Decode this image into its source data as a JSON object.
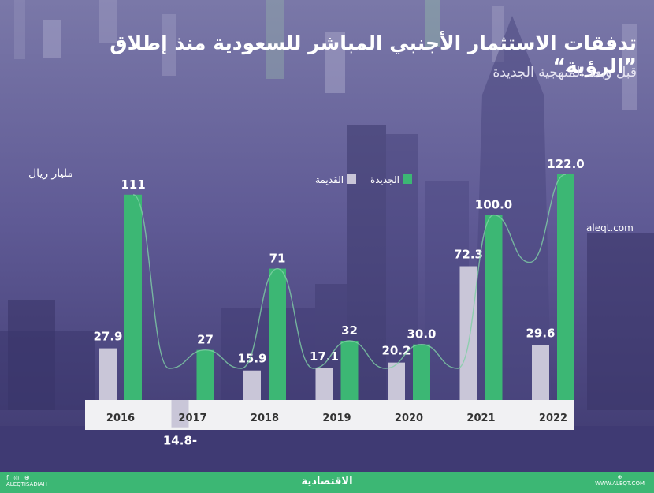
{
  "header": {
    "title": "تدفقات الاستثمار الأجنبي المباشر للسعودية منذ إطلاق ”الرؤية“",
    "subtitle": "قبل وبعد المنهجية الجديدة"
  },
  "unit_label": "مليار ريال",
  "source_label": "aleqt.com",
  "legend": {
    "new_label": "الجديدة",
    "old_label": "القديمة"
  },
  "colors": {
    "new": "#3cb774",
    "old": "#c9c6d8",
    "axis_bar": "#f1f1f3",
    "footer": "#3cb774"
  },
  "footer": {
    "logo": "الاقتصادية",
    "left_handle": "ALEQTISADIAH",
    "right_handle": "WWW.ALEQT.COM",
    "left_icons": "f ◎ ⊕",
    "right_icon": "⊕"
  },
  "chart_data": {
    "type": "bar",
    "title": "تدفقات الاستثمار الأجنبي المباشر للسعودية منذ إطلاق ”الرؤية“",
    "subtitle": "قبل وبعد المنهجية الجديدة",
    "ylabel": "مليار ريال",
    "categories": [
      "2016",
      "2017",
      "2018",
      "2019",
      "2020",
      "2021",
      "2022"
    ],
    "series": [
      {
        "name": "القديمة",
        "values": [
          27.9,
          -14.8,
          15.9,
          17.1,
          20.2,
          72.3,
          29.6
        ],
        "labels": [
          "27.9",
          "14.8-",
          "15.9",
          "17.1",
          "20.2",
          "72.3",
          "29.6"
        ]
      },
      {
        "name": "الجديدة",
        "values": [
          111,
          27,
          71,
          32,
          30.0,
          100.0,
          122.0
        ],
        "labels": [
          "111",
          "27",
          "71",
          "32",
          "30.0",
          "100.0",
          "122.0"
        ]
      }
    ],
    "ylim": [
      -14.8,
      122
    ],
    "grid": false,
    "legend_position": "top-center",
    "trend_line": "smooth curve through the new-methodology values"
  }
}
